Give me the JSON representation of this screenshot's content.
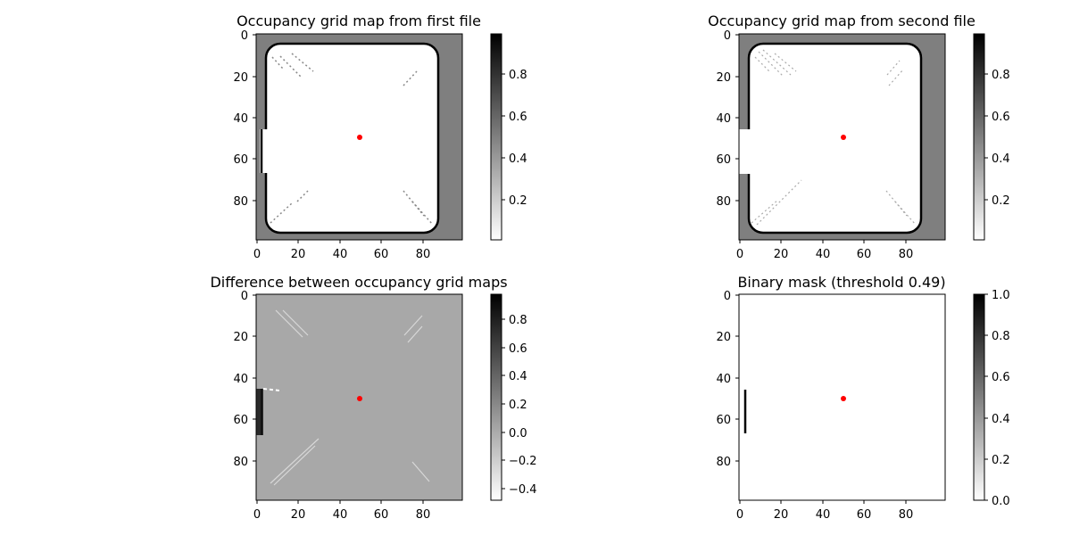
{
  "chart_data": [
    {
      "type": "heatmap",
      "title": "Occupancy grid map from first file",
      "xlim": [
        0,
        99
      ],
      "ylim": [
        99,
        0
      ],
      "x_ticks": [
        "0",
        "20",
        "40",
        "60",
        "80"
      ],
      "y_ticks": [
        "0",
        "20",
        "40",
        "60",
        "80"
      ],
      "colorbar_ticks": [
        "0.2",
        "0.4",
        "0.6",
        "0.8"
      ],
      "colorbar_range": [
        0.0,
        0.98
      ],
      "colormap": "gray_r",
      "background_value": 0.5,
      "free_value": 0.0,
      "wall_value": 1.0,
      "robot_marker": {
        "x": 50,
        "y": 50,
        "color": "#ff0000"
      }
    },
    {
      "type": "heatmap",
      "title": "Occupancy grid map from second file",
      "xlim": [
        0,
        99
      ],
      "ylim": [
        99,
        0
      ],
      "x_ticks": [
        "0",
        "20",
        "40",
        "60",
        "80"
      ],
      "y_ticks": [
        "0",
        "20",
        "40",
        "60",
        "80"
      ],
      "colorbar_ticks": [
        "0.2",
        "0.4",
        "0.6",
        "0.8"
      ],
      "colorbar_range": [
        0.0,
        0.98
      ],
      "colormap": "gray_r",
      "background_value": 0.5,
      "free_value": 0.0,
      "wall_value": 1.0,
      "robot_marker": {
        "x": 50,
        "y": 50,
        "color": "#ff0000"
      }
    },
    {
      "type": "heatmap",
      "title": "Difference between occupancy grid maps",
      "xlim": [
        0,
        99
      ],
      "ylim": [
        99,
        0
      ],
      "x_ticks": [
        "0",
        "20",
        "40",
        "60",
        "80"
      ],
      "y_ticks": [
        "0",
        "20",
        "40",
        "60",
        "80"
      ],
      "colorbar_ticks": [
        "−0.4",
        "−0.2",
        "0.0",
        "0.2",
        "0.4",
        "0.6",
        "0.8"
      ],
      "colorbar_range": [
        -0.48,
        0.98
      ],
      "colormap": "gray_r",
      "background_value": 0.0,
      "robot_marker": {
        "x": 50,
        "y": 50,
        "color": "#ff0000"
      }
    },
    {
      "type": "heatmap",
      "title": "Binary mask (threshold 0.49)",
      "xlim": [
        0,
        99
      ],
      "ylim": [
        99,
        0
      ],
      "x_ticks": [
        "0",
        "20",
        "40",
        "60",
        "80"
      ],
      "y_ticks": [
        "0",
        "20",
        "40",
        "60",
        "80"
      ],
      "colorbar_ticks": [
        "0.0",
        "0.2",
        "0.4",
        "0.6",
        "0.8",
        "1.0"
      ],
      "colorbar_range": [
        0.0,
        1.0
      ],
      "colormap": "gray_r",
      "background_value": 0.0,
      "mask_segment": {
        "x": 3,
        "y_from": 46,
        "y_to": 67
      },
      "robot_marker": {
        "x": 50,
        "y": 50,
        "color": "#ff0000"
      }
    }
  ]
}
